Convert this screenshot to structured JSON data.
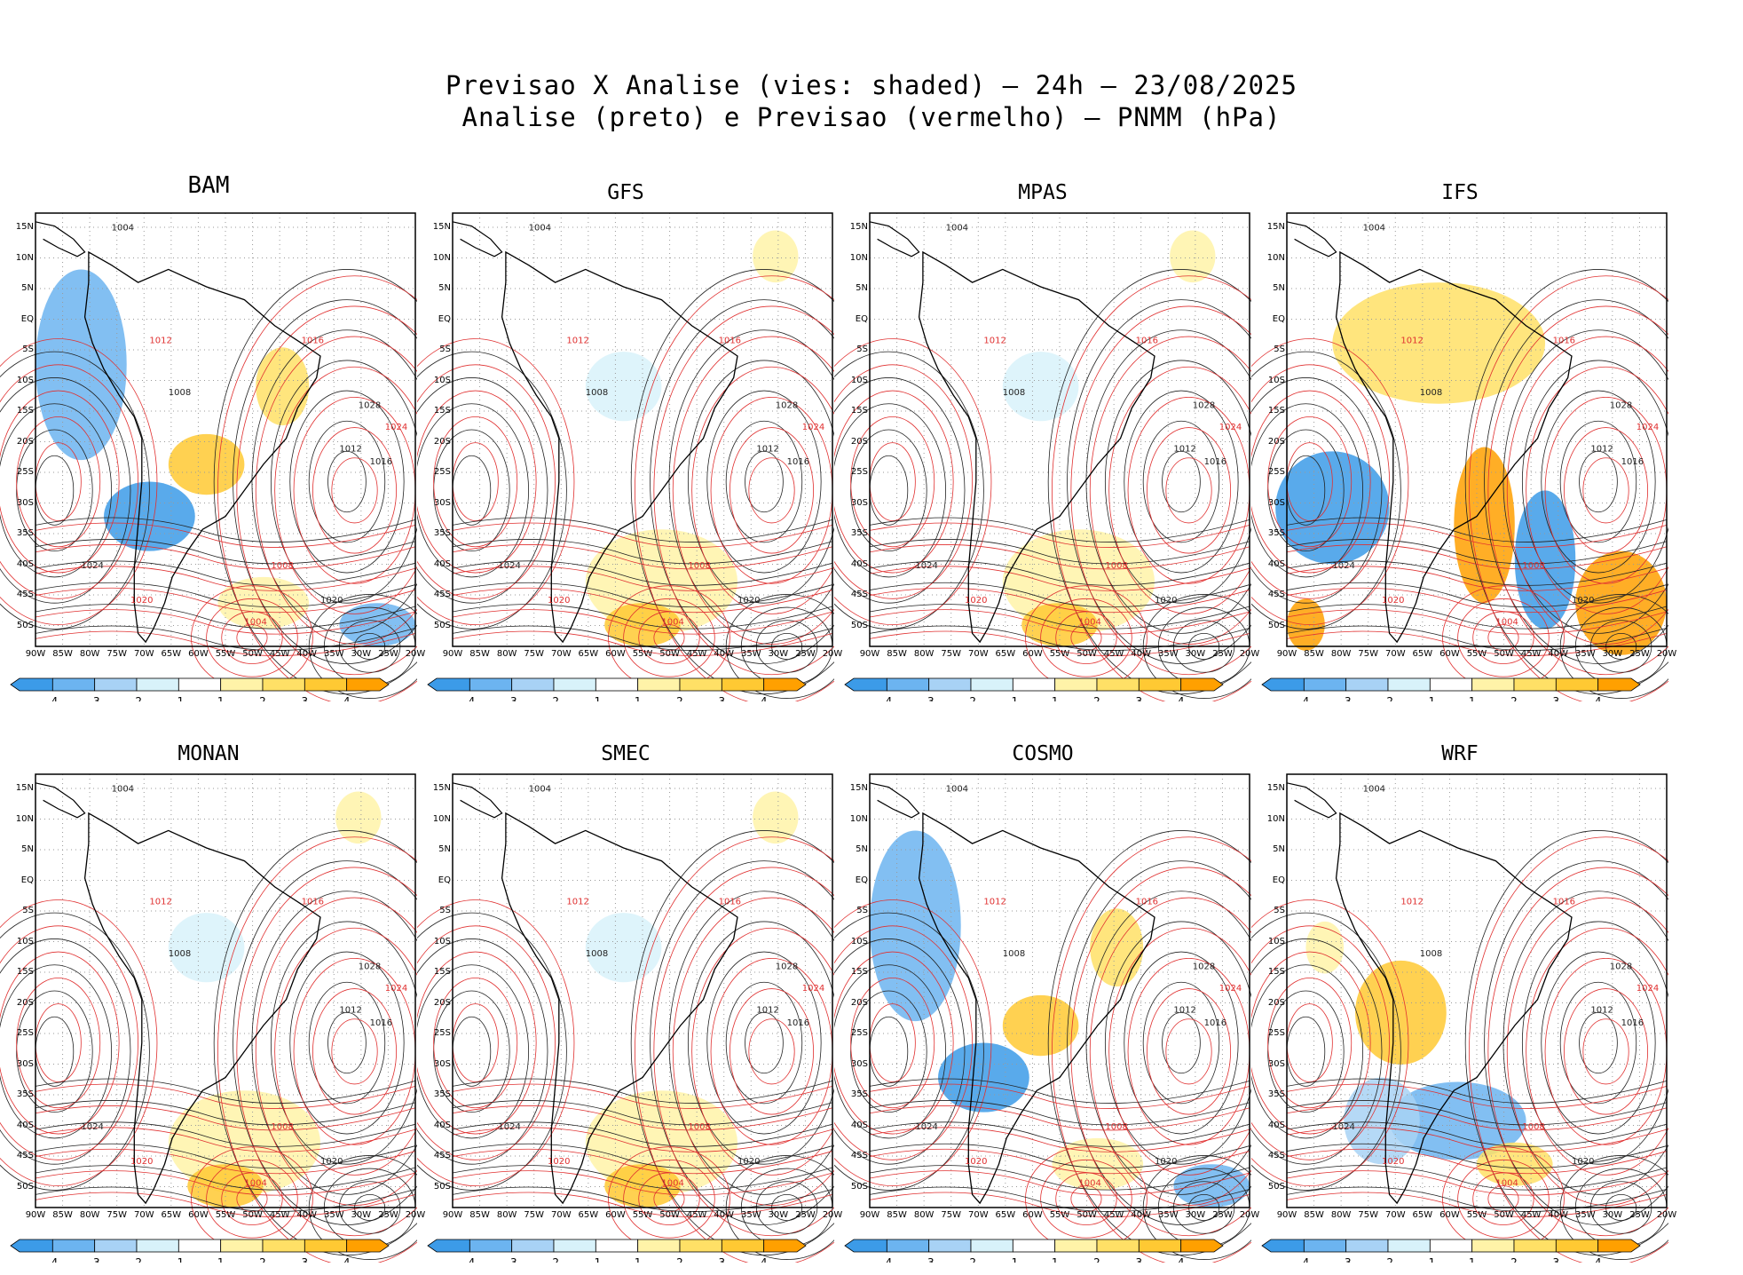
{
  "figure": {
    "title_line1": "Previsao X Analise (vies: shaded) – 24h – 23/08/2025",
    "title_line2": "Analise (preto) e Previsao (vermelho) – PNMM (hPa)"
  },
  "panels": [
    {
      "name": "BAM",
      "bias": "mixed-neg"
    },
    {
      "name": "GFS",
      "bias": "light"
    },
    {
      "name": "MPAS",
      "bias": "light"
    },
    {
      "name": "IFS",
      "bias": "strong"
    },
    {
      "name": "MONAN",
      "bias": "light"
    },
    {
      "name": "SMEC",
      "bias": "light"
    },
    {
      "name": "COSMO",
      "bias": "mixed-neg"
    },
    {
      "name": "WRF",
      "bias": "mixed"
    }
  ],
  "lat_labels": [
    "15N",
    "10N",
    "5N",
    "EQ",
    "5S",
    "10S",
    "15S",
    "20S",
    "25S",
    "30S",
    "35S",
    "40S",
    "45S",
    "50S"
  ],
  "lon_labels": [
    "90W",
    "85W",
    "80W",
    "75W",
    "70W",
    "65W",
    "60W",
    "55W",
    "50W",
    "45W",
    "40W",
    "35W",
    "30W",
    "25W",
    "20W"
  ],
  "contour_labels": {
    "analysis": [
      "1004",
      "1008",
      "1012",
      "1016",
      "1020",
      "1024",
      "1028"
    ],
    "forecast": [
      "1004",
      "1008",
      "1012",
      "1016",
      "1020",
      "1024"
    ]
  },
  "colorbar": {
    "labels": [
      "-4",
      "-3",
      "-2",
      "-1",
      "1",
      "2",
      "3",
      "4"
    ],
    "colors": [
      "#3c9be8",
      "#6cb4f0",
      "#a8d2f5",
      "#d8f2fa",
      "#ffffff",
      "#fff3a8",
      "#ffe066",
      "#ffc933",
      "#ffa000"
    ]
  },
  "colors": {
    "analysis_contour": "#222222",
    "forecast_contour": "#e03030",
    "grid": "#9a9a9a"
  }
}
